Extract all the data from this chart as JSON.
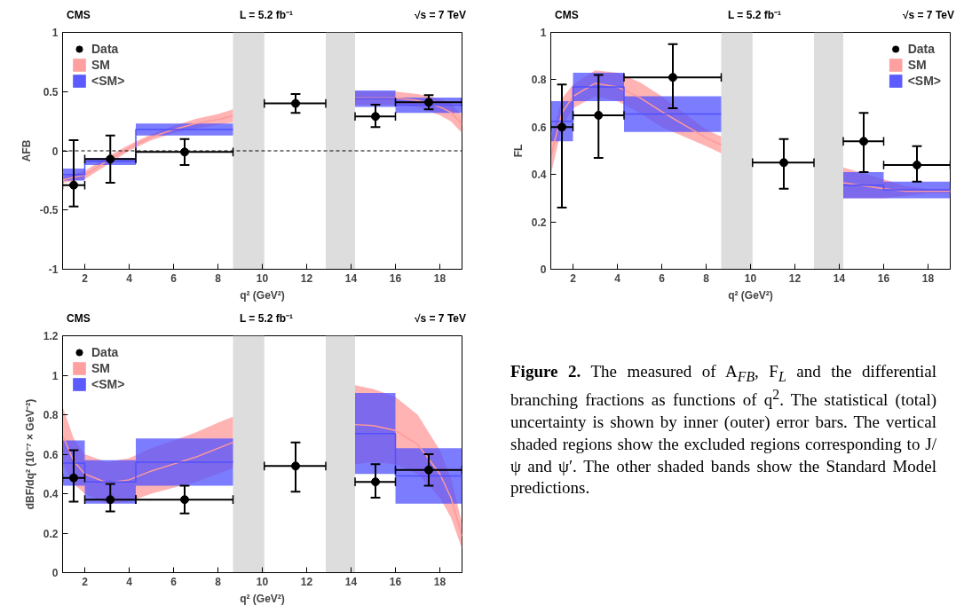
{
  "chart_data": [
    {
      "type": "scatter",
      "ylabel": "AFB",
      "xlabel": "q² (GeV²)",
      "xlim": [
        1,
        19
      ],
      "ylim": [
        -1,
        1
      ],
      "xticks": [
        2,
        4,
        6,
        8,
        10,
        12,
        14,
        16,
        18
      ],
      "yticks": [
        -1,
        -0.5,
        0,
        0.5,
        1
      ],
      "legend": "top left",
      "annotations": [
        "CMS",
        "L = 5.2 fb⁻¹",
        "√s = 7 TeV"
      ],
      "bands": [
        {
          "axis": "x",
          "from": 8.68,
          "to": 10.09,
          "color": "#dddddd"
        },
        {
          "axis": "x",
          "from": 12.86,
          "to": 14.18,
          "color": "#dddddd"
        }
      ],
      "ref_lines": [
        {
          "axis": "y",
          "value": 0,
          "color": "#000000",
          "line_style": "dashed"
        }
      ],
      "series": [
        {
          "name": "SM",
          "type": "line",
          "color": "#ff9999",
          "x": [
            1,
            2,
            3,
            4,
            5,
            6,
            7,
            8,
            8.68,
            11.4,
            14.18,
            16,
            17,
            18,
            18.5,
            19
          ],
          "values": [
            -0.245,
            -0.205,
            -0.085,
            0.025,
            0.115,
            0.18,
            0.23,
            0.265,
            0.295,
            null,
            0.445,
            0.445,
            0.425,
            0.37,
            0.325,
            0.225
          ],
          "lower": [
            -0.27,
            -0.24,
            -0.12,
            0.0,
            0.09,
            0.15,
            0.19,
            0.22,
            0.24,
            null,
            0.39,
            0.39,
            0.37,
            0.3,
            0.25,
            0.15
          ],
          "upper": [
            -0.22,
            -0.17,
            -0.05,
            0.05,
            0.14,
            0.21,
            0.27,
            0.31,
            0.35,
            null,
            0.5,
            0.5,
            0.48,
            0.44,
            0.4,
            0.3
          ]
        },
        {
          "name": "<SM>",
          "type": "line",
          "color": "#5050ff",
          "x": [
            1,
            2,
            2,
            4.3,
            4.3,
            8.68,
            11.4,
            14.18,
            16,
            16,
            19
          ],
          "values": [
            -0.2,
            -0.2,
            -0.09,
            -0.09,
            0.18,
            0.18,
            null,
            0.44,
            0.44,
            0.385,
            0.385
          ],
          "lower": [
            -0.25,
            -0.25,
            -0.12,
            -0.12,
            0.13,
            0.13,
            null,
            0.37,
            0.37,
            0.32,
            0.32
          ],
          "upper": [
            -0.15,
            -0.15,
            -0.06,
            -0.06,
            0.23,
            0.23,
            null,
            0.51,
            0.51,
            0.45,
            0.45
          ]
        },
        {
          "name": "Data",
          "type": "scatter",
          "color": "#000000",
          "marker": "circle",
          "x": [
            1.5,
            3.15,
            6.5,
            11.5,
            15.1,
            17.5
          ],
          "values": [
            -0.29,
            -0.07,
            -0.01,
            0.4,
            0.29,
            0.41
          ],
          "errors": [
            [
              -0.47,
              0.09
            ],
            [
              -0.27,
              0.13
            ],
            [
              -0.12,
              0.1
            ],
            [
              0.32,
              0.48
            ],
            [
              0.2,
              0.39
            ],
            [
              0.35,
              0.47
            ]
          ],
          "xerrors": [
            [
              1,
              2
            ],
            [
              2,
              4.3
            ],
            [
              4.3,
              8.68
            ],
            [
              10.09,
              12.86
            ],
            [
              14.18,
              16
            ],
            [
              16,
              19
            ]
          ]
        }
      ]
    },
    {
      "type": "scatter",
      "ylabel": "FL",
      "xlabel": "q² (GeV²)",
      "xlim": [
        1,
        19
      ],
      "ylim": [
        0,
        1
      ],
      "xticks": [
        2,
        4,
        6,
        8,
        10,
        12,
        14,
        16,
        18
      ],
      "yticks": [
        0,
        0.2,
        0.4,
        0.6,
        0.8,
        1
      ],
      "legend": "top right",
      "annotations": [
        "CMS",
        "L = 5.2 fb⁻¹",
        "√s = 7 TeV"
      ],
      "bands": [
        {
          "axis": "x",
          "from": 8.68,
          "to": 10.09,
          "color": "#dddddd"
        },
        {
          "axis": "x",
          "from": 12.86,
          "to": 14.18,
          "color": "#dddddd"
        }
      ],
      "series": [
        {
          "name": "SM",
          "type": "line",
          "color": "#ff9999",
          "x": [
            1,
            1.5,
            2,
            3,
            4,
            5,
            6,
            7,
            8,
            8.68,
            11.4,
            14.18,
            16,
            17,
            18,
            19
          ],
          "values": [
            0.475,
            0.66,
            0.73,
            0.785,
            0.77,
            0.725,
            0.665,
            0.61,
            0.555,
            0.525,
            null,
            0.365,
            0.34,
            0.33,
            0.33,
            0.33
          ],
          "lower": [
            0.4,
            0.6,
            0.68,
            0.73,
            0.71,
            0.66,
            0.6,
            0.56,
            0.52,
            0.49,
            null,
            0.3,
            0.3,
            0.31,
            0.32,
            0.32
          ],
          "upper": [
            0.55,
            0.72,
            0.78,
            0.84,
            0.83,
            0.79,
            0.73,
            0.66,
            0.59,
            0.56,
            null,
            0.43,
            0.38,
            0.35,
            0.34,
            0.34
          ]
        },
        {
          "name": "<SM>",
          "type": "line",
          "color": "#5050ff",
          "x": [
            1,
            2,
            2,
            4.3,
            4.3,
            8.68,
            11.4,
            14.18,
            16,
            16,
            19
          ],
          "values": [
            0.625,
            0.625,
            0.77,
            0.77,
            0.655,
            0.655,
            null,
            0.355,
            0.355,
            0.335,
            0.335
          ],
          "lower": [
            0.54,
            0.54,
            0.71,
            0.71,
            0.58,
            0.58,
            null,
            0.3,
            0.3,
            0.3,
            0.3
          ],
          "upper": [
            0.71,
            0.71,
            0.83,
            0.83,
            0.73,
            0.73,
            null,
            0.41,
            0.41,
            0.37,
            0.37
          ]
        },
        {
          "name": "Data",
          "type": "scatter",
          "color": "#000000",
          "marker": "circle",
          "x": [
            1.5,
            3.15,
            6.5,
            11.5,
            15.1,
            17.5
          ],
          "values": [
            0.6,
            0.65,
            0.81,
            0.45,
            0.54,
            0.44
          ],
          "errors": [
            [
              0.26,
              0.78
            ],
            [
              0.47,
              0.82
            ],
            [
              0.68,
              0.95
            ],
            [
              0.34,
              0.55
            ],
            [
              0.41,
              0.66
            ],
            [
              0.37,
              0.52
            ]
          ],
          "xerrors": [
            [
              1,
              2
            ],
            [
              2,
              4.3
            ],
            [
              4.3,
              8.68
            ],
            [
              10.09,
              12.86
            ],
            [
              14.18,
              16
            ],
            [
              16,
              19
            ]
          ]
        }
      ]
    },
    {
      "type": "scatter",
      "ylabel": "dBF/dq² (10⁻⁷ × GeV⁻²)",
      "xlabel": "q² (GeV²)",
      "xlim": [
        1,
        19
      ],
      "ylim": [
        0,
        1.2
      ],
      "xticks": [
        2,
        4,
        6,
        8,
        10,
        12,
        14,
        16,
        18
      ],
      "yticks": [
        0,
        0.2,
        0.4,
        0.6,
        0.8,
        1,
        1.2
      ],
      "legend": "top left",
      "annotations": [
        "CMS",
        "L = 5.2 fb⁻¹",
        "√s = 7 TeV"
      ],
      "bands": [
        {
          "axis": "x",
          "from": 8.68,
          "to": 10.09,
          "color": "#dddddd"
        },
        {
          "axis": "x",
          "from": 12.86,
          "to": 14.18,
          "color": "#dddddd"
        }
      ],
      "series": [
        {
          "name": "SM",
          "type": "line",
          "color": "#ff9999",
          "x": [
            1,
            1.5,
            2,
            3,
            4,
            5,
            6,
            7,
            8,
            8.68,
            11.4,
            14.18,
            15,
            16,
            17,
            18,
            18.5,
            19
          ],
          "values": [
            0.695,
            0.565,
            0.5,
            0.455,
            0.47,
            0.515,
            0.55,
            0.585,
            0.63,
            0.66,
            null,
            0.75,
            0.745,
            0.72,
            0.65,
            0.5,
            0.38,
            0.185
          ],
          "lower": [
            0.55,
            0.45,
            0.4,
            0.35,
            0.36,
            0.4,
            0.43,
            0.46,
            0.5,
            0.53,
            null,
            0.55,
            0.56,
            0.55,
            0.5,
            0.38,
            0.28,
            0.12
          ],
          "upper": [
            0.84,
            0.68,
            0.6,
            0.56,
            0.58,
            0.63,
            0.67,
            0.71,
            0.76,
            0.79,
            null,
            0.95,
            0.93,
            0.89,
            0.8,
            0.62,
            0.48,
            0.25
          ]
        },
        {
          "name": "<SM>",
          "type": "line",
          "color": "#5050ff",
          "x": [
            1,
            2,
            2,
            4.3,
            4.3,
            8.68,
            11.4,
            14.18,
            16,
            16,
            19
          ],
          "values": [
            0.555,
            0.555,
            0.46,
            0.46,
            0.56,
            0.56,
            null,
            0.705,
            0.705,
            0.49,
            0.49
          ],
          "lower": [
            0.44,
            0.44,
            0.35,
            0.35,
            0.44,
            0.44,
            null,
            0.5,
            0.5,
            0.35,
            0.35
          ],
          "upper": [
            0.67,
            0.67,
            0.57,
            0.57,
            0.68,
            0.68,
            null,
            0.91,
            0.91,
            0.63,
            0.63
          ]
        },
        {
          "name": "Data",
          "type": "scatter",
          "color": "#000000",
          "marker": "circle",
          "x": [
            1.5,
            3.15,
            6.5,
            11.5,
            15.1,
            17.5
          ],
          "values": [
            0.48,
            0.37,
            0.37,
            0.54,
            0.46,
            0.52
          ],
          "errors": [
            [
              0.36,
              0.62
            ],
            [
              0.31,
              0.45
            ],
            [
              0.3,
              0.44
            ],
            [
              0.41,
              0.66
            ],
            [
              0.38,
              0.55
            ],
            [
              0.44,
              0.6
            ]
          ],
          "xerrors": [
            [
              1,
              2
            ],
            [
              2,
              4.3
            ],
            [
              4.3,
              8.68
            ],
            [
              10.09,
              12.86
            ],
            [
              14.18,
              16
            ],
            [
              16,
              19
            ]
          ]
        }
      ]
    },
    {
      "type": "other",
      "annotations": [
        "Figure 2. The measured of A$_{FB}$, F$_{L}$ and the differential branching fractions as functions of q$^{2}$. The statistical (total) uncertainty is shown by inner (outer) error bars. The vertical shaded regions show the excluded regions corresponding to J/ψ and ψ′. The other shaded bands show the Standard Model predictions."
      ]
    }
  ]
}
